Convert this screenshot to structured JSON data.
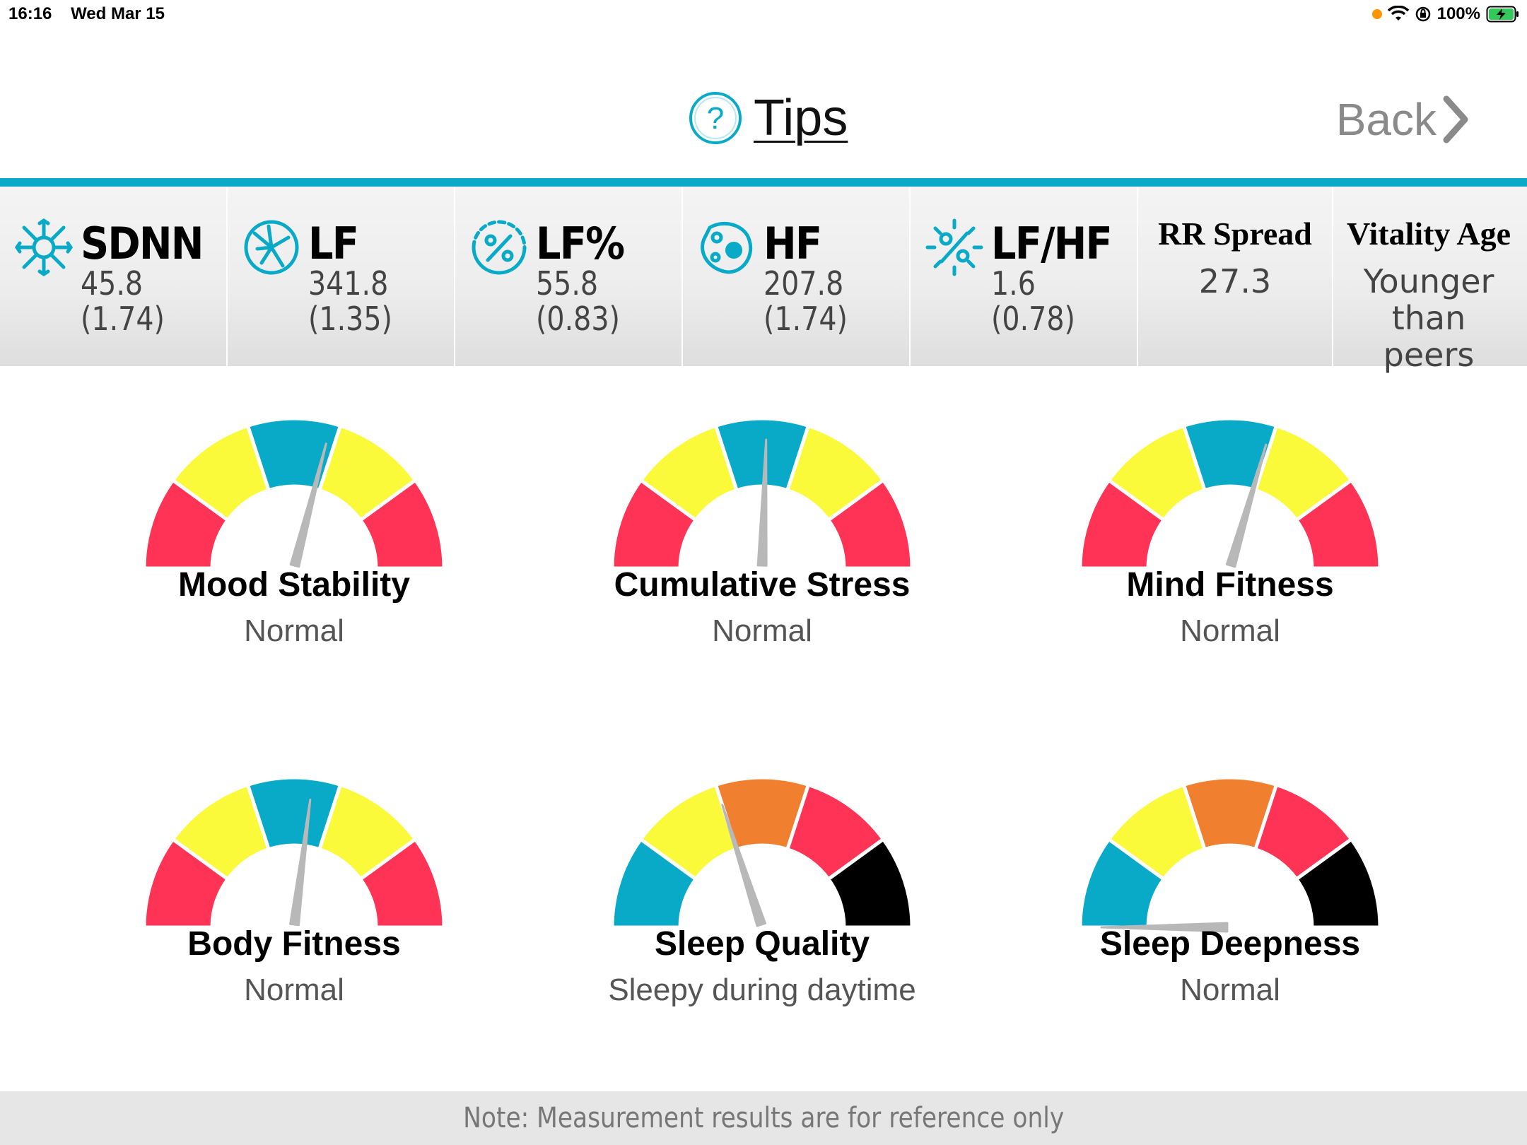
{
  "status_bar": {
    "time": "16:16",
    "date": "Wed Mar 15",
    "battery": "100%",
    "icons": [
      "orange-dot-icon",
      "wifi-icon",
      "rotation-lock-icon",
      "battery-charging-icon"
    ]
  },
  "header": {
    "tips_label": "Tips",
    "back_label": "Back"
  },
  "colors": {
    "accent": "#08aac8",
    "red": "#ff3355",
    "yellow": "#fafa3a",
    "blue": "#08aac8",
    "orange": "#f08030",
    "black": "#000000",
    "needle": "#b8b8b8"
  },
  "metrics": [
    {
      "name": "SDNN",
      "value": "45.8",
      "sub": "(1.74)",
      "icon": "sdnn-icon"
    },
    {
      "name": "LF",
      "value": "341.8",
      "sub": "(1.35)",
      "icon": "lf-icon"
    },
    {
      "name": "LF%",
      "value": "55.8",
      "sub": "(0.83)",
      "icon": "lf-percent-icon"
    },
    {
      "name": "HF",
      "value": "207.8",
      "sub": "(1.74)",
      "icon": "hf-icon"
    },
    {
      "name": "LF/HF",
      "value": "1.6",
      "sub": "(0.78)",
      "icon": "lf-hf-icon"
    }
  ],
  "rr_spread": {
    "label": "RR Spread",
    "value": "27.3"
  },
  "vitality_age": {
    "label": "Vitality Age",
    "value": "Younger than peers"
  },
  "gauges": [
    {
      "title": "Mood Stability",
      "status": "Normal",
      "palette": "symmetric",
      "needle": 0.58
    },
    {
      "title": "Cumulative Stress",
      "status": "Normal",
      "palette": "symmetric",
      "needle": 0.51
    },
    {
      "title": "Mind Fitness",
      "status": "Normal",
      "palette": "symmetric",
      "needle": 0.59
    },
    {
      "title": "Body Fitness",
      "status": "Normal",
      "palette": "symmetric",
      "needle": 0.54
    },
    {
      "title": "Sleep Quality",
      "status": "Sleepy during daytime",
      "palette": "sleep",
      "needle": 0.4
    },
    {
      "title": "Sleep Deepness",
      "status": "Normal",
      "palette": "sleep",
      "needle": 0.0
    }
  ],
  "footer": {
    "note": "Note: Measurement results are for reference only"
  }
}
